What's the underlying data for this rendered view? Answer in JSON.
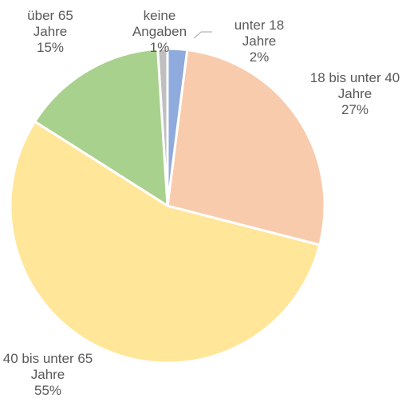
{
  "chart_data": {
    "type": "pie",
    "categories": [
      "unter 18 Jahre",
      "18 bis unter 40 Jahre",
      "40 bis unter 65 Jahre",
      "über 65 Jahre",
      "keine Angaben"
    ],
    "values": [
      2,
      27,
      55,
      15,
      1
    ],
    "value_labels": [
      "2%",
      "27%",
      "55%",
      "15%",
      "1%"
    ],
    "colors": [
      "#8faadc",
      "#f8cbad",
      "#ffe699",
      "#a9d18e",
      "#bfbfbf"
    ]
  }
}
